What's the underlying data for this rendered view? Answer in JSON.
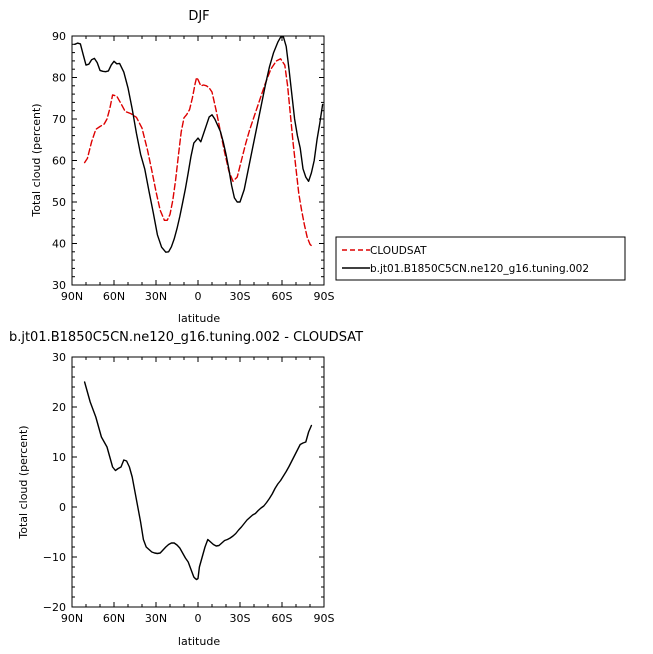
{
  "chart_data": [
    {
      "type": "line",
      "title": "DJF",
      "xlabel": "latitude",
      "ylabel": "Total cloud (percent)",
      "xlim": [
        -90,
        90
      ],
      "ylim": [
        30,
        90
      ],
      "x_tick_values": [
        -90,
        -60,
        -30,
        0,
        30,
        60,
        90
      ],
      "x_tick_labels": [
        "90N",
        "60N",
        "30N",
        "0",
        "30S",
        "60S",
        "90S"
      ],
      "y_tick_values": [
        30,
        40,
        50,
        60,
        70,
        80,
        90
      ],
      "y_tick_labels": [
        "30",
        "40",
        "50",
        "60",
        "70",
        "80",
        "90"
      ],
      "grid": false,
      "legend_position": "outside-right",
      "series": [
        {
          "name": "CLOUDSAT",
          "color": "#dd0000",
          "dash": "dashed",
          "x": [
            -81,
            -79,
            -76,
            -73,
            -70,
            -67,
            -65,
            -63,
            -61,
            -58,
            -55,
            -52,
            -48,
            -44,
            -40,
            -36,
            -33,
            -30,
            -27,
            -24,
            -22,
            -20,
            -18,
            -16,
            -14,
            -12,
            -10,
            -8,
            -6,
            -4,
            -2,
            -1,
            0,
            2,
            4,
            6,
            8,
            10,
            13,
            16,
            19,
            22,
            25,
            28,
            31,
            34,
            37,
            40,
            44,
            48,
            52,
            56,
            59,
            62,
            64,
            66,
            68,
            70,
            72,
            74,
            76,
            78,
            80,
            81
          ],
          "values": [
            59.5,
            60.5,
            64.5,
            67.5,
            68.2,
            68.8,
            70,
            72.5,
            75.8,
            75.5,
            73.7,
            71.8,
            71.3,
            70.4,
            67.8,
            62.4,
            57.6,
            52.5,
            48,
            45.6,
            45.6,
            47,
            50.4,
            55.3,
            61.2,
            66.9,
            70.3,
            71.1,
            72.3,
            75.1,
            78.6,
            80,
            79.5,
            78,
            78.2,
            78,
            77.5,
            76.5,
            72,
            67,
            62,
            57.5,
            55,
            56,
            60,
            64,
            67.5,
            70.5,
            74.5,
            78.5,
            82,
            84,
            84.5,
            83,
            78,
            71,
            64,
            58,
            52,
            48,
            44.5,
            41.5,
            39.8,
            39.5
          ]
        },
        {
          "name": "b.jt01.B1850C5CN.ne120_g16.tuning.002",
          "color": "#000000",
          "dash": "solid",
          "x": [
            -88,
            -86,
            -84,
            -82,
            -80,
            -78,
            -76,
            -74,
            -72,
            -70,
            -68,
            -66,
            -64,
            -62,
            -60,
            -58,
            -56,
            -53,
            -50,
            -47,
            -44,
            -41,
            -38,
            -35,
            -32,
            -29,
            -26,
            -23,
            -21,
            -19,
            -17,
            -15,
            -13,
            -11,
            -9,
            -7,
            -5,
            -3,
            -1,
            0,
            2,
            4,
            6,
            8,
            10,
            12,
            14,
            16,
            18,
            20,
            22,
            24,
            26,
            28,
            30,
            33,
            36,
            39,
            42,
            45,
            48,
            51,
            54,
            57,
            59,
            61,
            63,
            65,
            67,
            69,
            71,
            73,
            75,
            77,
            79,
            81,
            83,
            85,
            87,
            89
          ],
          "values": [
            88,
            88.3,
            88.1,
            85.5,
            83,
            83.2,
            84.3,
            84.6,
            83.6,
            81.7,
            81.5,
            81.4,
            81.6,
            83,
            83.9,
            83.3,
            83.4,
            81.3,
            77.5,
            72.4,
            66.6,
            61.5,
            57.9,
            52.6,
            47.5,
            42.1,
            39.1,
            37.9,
            38,
            39.2,
            41.1,
            43.6,
            46.5,
            49.8,
            53.2,
            57,
            61,
            64.2,
            65,
            65.4,
            64.5,
            66.5,
            68.5,
            70.5,
            71,
            70,
            68.5,
            67,
            64.5,
            61.5,
            58,
            54,
            51,
            50,
            50,
            53,
            58,
            63,
            68,
            73,
            78,
            82.5,
            86,
            88.5,
            89.7,
            89.8,
            87.5,
            82,
            76,
            70,
            66,
            63,
            58,
            56,
            55,
            57,
            60,
            65,
            69,
            73.5
          ]
        }
      ]
    },
    {
      "type": "line",
      "title": "b.jt01.B1850C5CN.ne120_g16.tuning.002 - CLOUDSAT",
      "xlabel": "latitude",
      "ylabel": "Total cloud (percent)",
      "xlim": [
        -90,
        90
      ],
      "ylim": [
        -20,
        30
      ],
      "x_tick_values": [
        -90,
        -60,
        -30,
        0,
        30,
        60,
        90
      ],
      "x_tick_labels": [
        "90N",
        "60N",
        "30N",
        "0",
        "30S",
        "60S",
        "90S"
      ],
      "y_tick_values": [
        -20,
        -10,
        0,
        10,
        20,
        30
      ],
      "y_tick_labels": [
        "−20",
        "−10",
        "0",
        "10",
        "20",
        "30"
      ],
      "grid": false,
      "series": [
        {
          "color": "#000000",
          "dash": "solid",
          "x": [
            -81,
            -79,
            -77,
            -75,
            -73,
            -71,
            -69,
            -67,
            -65,
            -63,
            -61,
            -59,
            -57,
            -55,
            -53,
            -51,
            -49,
            -47,
            -45,
            -43,
            -41,
            -39,
            -37,
            -35,
            -33,
            -31,
            -29,
            -27,
            -25,
            -23,
            -21,
            -19,
            -17,
            -15,
            -13,
            -11,
            -9,
            -7,
            -5,
            -3,
            -2,
            -1,
            0,
            1,
            3,
            5,
            7,
            9,
            11,
            13,
            15,
            17,
            19,
            21,
            23,
            25,
            27,
            29,
            31,
            33,
            35,
            37,
            39,
            41,
            43,
            45,
            47,
            49,
            51,
            53,
            55,
            57,
            59,
            61,
            63,
            65,
            67,
            69,
            71,
            73,
            75,
            77,
            79,
            81
          ],
          "values": [
            25,
            23,
            21,
            19.5,
            18,
            16,
            14,
            13,
            12,
            10,
            8,
            7.3,
            7.7,
            8,
            9.4,
            9.2,
            8,
            6,
            3,
            0,
            -3,
            -6.5,
            -8,
            -8.5,
            -9,
            -9.2,
            -9.3,
            -9.2,
            -8.6,
            -8,
            -7.5,
            -7.2,
            -7.2,
            -7.6,
            -8.2,
            -9.2,
            -10.2,
            -11,
            -12.5,
            -14,
            -14.3,
            -14.5,
            -14.3,
            -12,
            -10,
            -8,
            -6.5,
            -7,
            -7.5,
            -7.8,
            -7.7,
            -7.2,
            -6.7,
            -6.5,
            -6.2,
            -5.8,
            -5.3,
            -4.6,
            -4,
            -3.3,
            -2.6,
            -2.1,
            -1.6,
            -1.3,
            -0.7,
            -0.2,
            0.2,
            0.9,
            1.7,
            2.6,
            3.7,
            4.6,
            5.3,
            6.2,
            7.1,
            8.1,
            9.2,
            10.3,
            11.4,
            12.5,
            12.8,
            13,
            15,
            16.3
          ]
        }
      ]
    }
  ]
}
